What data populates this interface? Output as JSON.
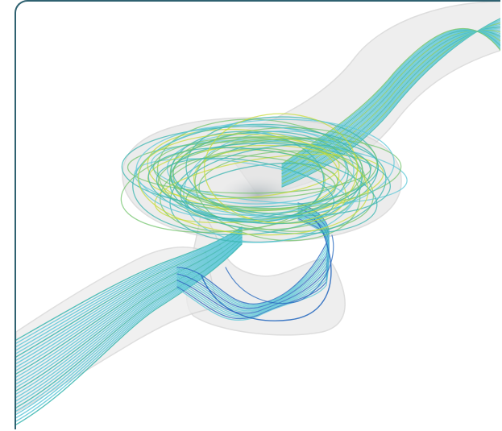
{
  "image": {
    "subject": "flow-streamlines-visualization",
    "colors": {
      "frame_border": "#2f6170",
      "pipe_fill": "#e6e6e6",
      "pipe_edge": "#cfcfcf",
      "stream_cyan": "#5fc8d8",
      "stream_teal": "#39b6b0",
      "stream_green": "#76c66f",
      "stream_yellow": "#c8dc3a",
      "stream_blue": "#2a6cc0"
    }
  }
}
